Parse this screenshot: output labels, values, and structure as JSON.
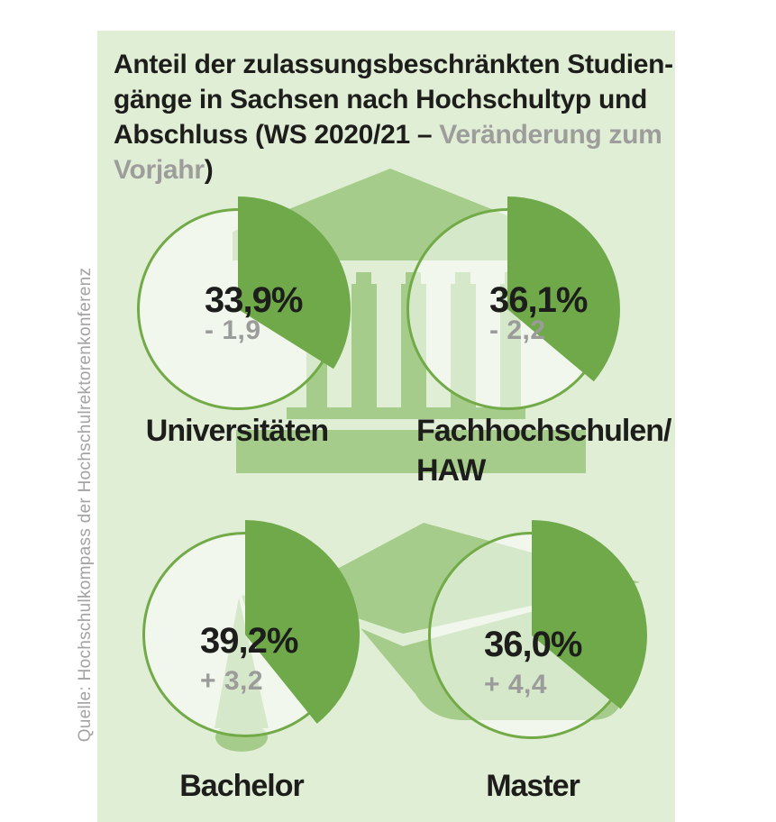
{
  "source_note": "Quelle: Hochschulkompass der Hochschulrektorenkonferenz",
  "title": {
    "lines": [
      {
        "black": "Anteil der zulassungsbeschränkten Studien-"
      },
      {
        "black": "gänge in Sachsen nach Hochschultyp und"
      },
      {
        "black": "Abschluss (WS 2020/21 – ",
        "gray": "Veränderung zum"
      },
      {
        "gray": "Vorjahr",
        "black2": ")"
      }
    ]
  },
  "colors": {
    "page_background": "#ffffff",
    "panel_background": "#e1eed6",
    "watermark_green": "#a5cc8a",
    "slice_green": "#6fa94a",
    "circle_outline_green": "#72aa48",
    "text_black": "#1d1d1b",
    "text_gray": "#9b9b9a"
  },
  "watermarks": {
    "top": "university-building-watermark",
    "bottom": "graduation-cap-watermark"
  },
  "chart_data": {
    "type": "pie",
    "title": "Anteil der zulassungsbeschränkten Studiengänge in Sachsen nach Hochschultyp und Abschluss (WS 2020/21 – Veränderung zum Vorjahr)",
    "unit": "%",
    "period": "WS 2020/21",
    "note": "Jede Torte zeigt den Anteil zulassungsbeschränkter Studiengänge; Start bei 12 Uhr, im Uhrzeigersinn",
    "series": [
      {
        "label": "Universitäten",
        "label_lines": [
          "Universitäten"
        ],
        "value_pct": 33.9,
        "value_label": "33,9%",
        "delta": -1.9,
        "delta_label": "- 1,9"
      },
      {
        "label": "Fachhochschulen/HAW",
        "label_lines": [
          "Fachhochschulen/",
          "HAW"
        ],
        "value_pct": 36.1,
        "value_label": "36,1%",
        "delta": -2.2,
        "delta_label": "- 2,2"
      },
      {
        "label": "Bachelor",
        "label_lines": [
          "Bachelor"
        ],
        "value_pct": 39.2,
        "value_label": "39,2%",
        "delta": 3.2,
        "delta_label": "+ 3,2"
      },
      {
        "label": "Master",
        "label_lines": [
          "Master"
        ],
        "value_pct": 36.0,
        "value_label": "36,0%",
        "delta": 4.4,
        "delta_label": "+ 4,4"
      }
    ]
  }
}
